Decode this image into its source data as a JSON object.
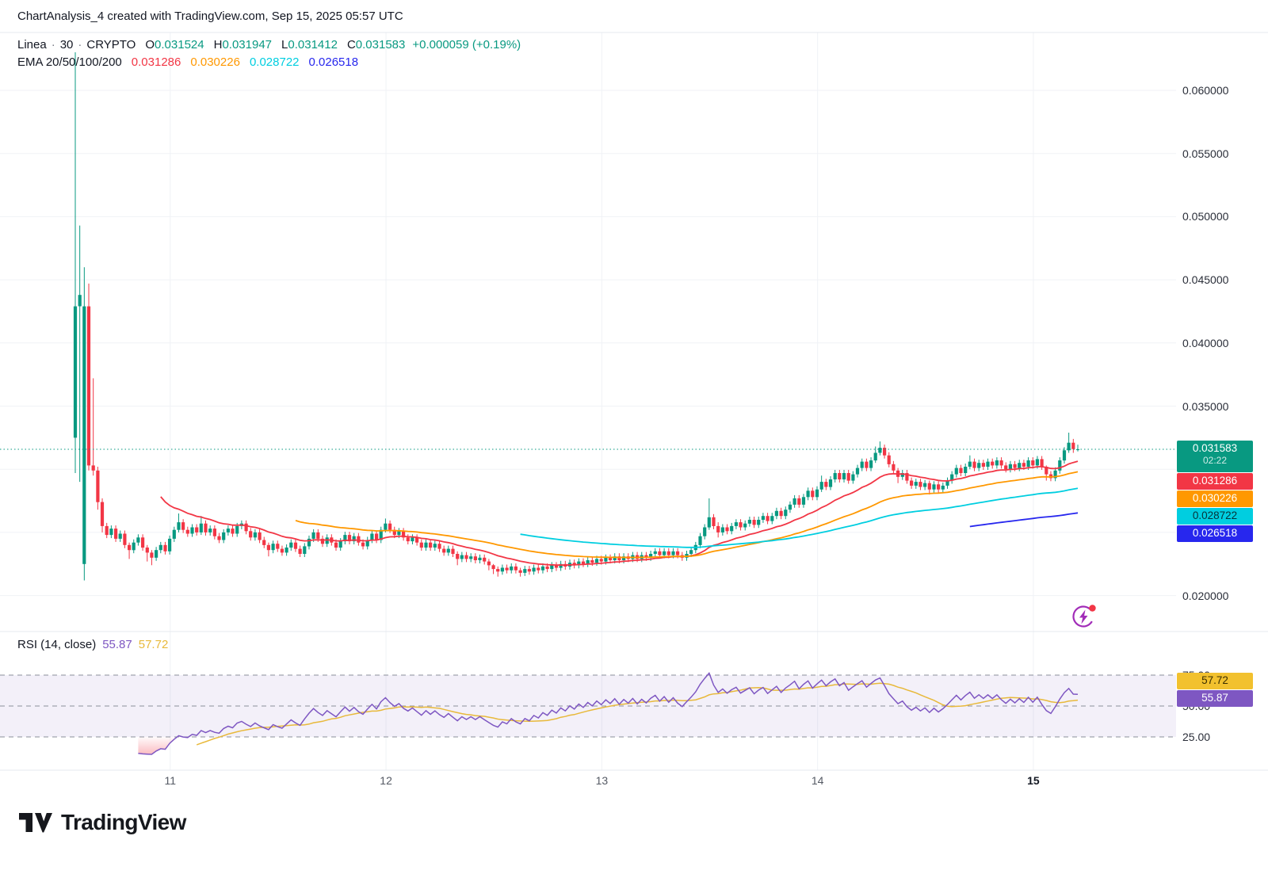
{
  "header": {
    "title": "ChartAnalysis_4 created with TradingView.com, Sep 15, 2025 05:57 UTC"
  },
  "legend": {
    "symbol": "Linea",
    "separator": "·",
    "interval": "30",
    "market": "CRYPTO",
    "ohlc": [
      {
        "label": "O",
        "value": "0.031524"
      },
      {
        "label": "H",
        "value": "0.031947"
      },
      {
        "label": "L",
        "value": "0.031412"
      },
      {
        "label": "C",
        "value": "0.031583"
      }
    ],
    "change": "+0.000059 (+0.19%)",
    "ema_label": "EMA 20/50/100/200",
    "ema_values": [
      "0.031286",
      "0.030226",
      "0.028722",
      "0.026518"
    ]
  },
  "price_axis": {
    "ticks": [
      {
        "text": "0.060000",
        "value": 0.06
      },
      {
        "text": "0.055000",
        "value": 0.055
      },
      {
        "text": "0.050000",
        "value": 0.05
      },
      {
        "text": "0.045000",
        "value": 0.045
      },
      {
        "text": "0.040000",
        "value": 0.04
      },
      {
        "text": "0.035000",
        "value": 0.035
      },
      {
        "text": "0.020000",
        "value": 0.02
      }
    ],
    "labels": [
      {
        "text": "0.031583",
        "sub": "02:22",
        "value": 0.031583,
        "bg": "#089981",
        "fg": "#ffffff"
      },
      {
        "text": "0.031286",
        "value": 0.031286,
        "bg": "#F23645",
        "fg": "#ffffff"
      },
      {
        "text": "0.030226",
        "value": 0.030226,
        "bg": "#FF9800",
        "fg": "#ffffff"
      },
      {
        "text": "0.028722",
        "value": 0.028722,
        "bg": "#00CEE0",
        "fg": "#073238"
      },
      {
        "text": "0.026518",
        "value": 0.026518,
        "bg": "#2727EE",
        "fg": "#ffffff"
      }
    ]
  },
  "rsi_pane": {
    "legend": "RSI (14, close)",
    "value": "55.87",
    "ma_value": "57.72",
    "ticks": [
      {
        "text": "75.00",
        "value": 75
      },
      {
        "text": "50.00",
        "value": 50
      },
      {
        "text": "25.00",
        "value": 25
      }
    ],
    "boxes": [
      {
        "text": "55.87",
        "value": 55.87,
        "bg": "#7E57C2",
        "fg": "#ffffff"
      },
      {
        "text": "57.72",
        "value": 57.72,
        "bg": "#F2C12E",
        "fg": "#3a2e00"
      }
    ]
  },
  "x_axis": {
    "labels": [
      {
        "text": "11",
        "day": 11
      },
      {
        "text": "12",
        "day": 12
      },
      {
        "text": "13",
        "day": 13
      },
      {
        "text": "14",
        "day": 14
      },
      {
        "text": "15",
        "day": 15,
        "emphasis": true
      }
    ]
  },
  "footer": {
    "brand": "TradingView"
  },
  "chart_data": {
    "type": "candlestick",
    "title": "Linea 30-minute chart, CRYPTO",
    "interval_minutes": 30,
    "bars_per_day": 48,
    "x_start_day": 10.56,
    "day_ticks": [
      11,
      12,
      13,
      14,
      15
    ],
    "price_grid": [
      0.06,
      0.055,
      0.05,
      0.045,
      0.04,
      0.035,
      0.03,
      0.025,
      0.02
    ],
    "visible_price_range": [
      0.0186,
      0.0625
    ],
    "current_price": 0.031583,
    "up_color": "#089981",
    "down_color": "#F23645",
    "default_wick": 0.00025,
    "candles": [
      [
        0.0325,
        0.0429,
        0.066,
        0.0297
      ],
      [
        0.0429,
        0.0438,
        0.0493,
        0.029
      ],
      [
        0.0225,
        0.0429,
        0.046,
        0.0212
      ],
      [
        0.0429,
        0.0303,
        0.0447,
        0.0299
      ],
      [
        0.0303,
        0.0299,
        0.0372,
        0.0295
      ],
      [
        0.0299,
        0.0274,
        0.0302,
        0.0268
      ],
      [
        0.0274,
        0.0255,
        0.0277,
        0.025
      ],
      [
        0.0255,
        0.0248
      ],
      [
        0.0248,
        0.0253
      ],
      [
        0.0253,
        0.0245
      ],
      [
        0.0245,
        0.0249
      ],
      [
        0.0249,
        0.024
      ],
      [
        0.024,
        0.0236,
        0.0242,
        0.0229
      ],
      [
        0.0236,
        0.0242
      ],
      [
        0.0242,
        0.0246
      ],
      [
        0.0246,
        0.0238
      ],
      [
        0.0238,
        0.0234,
        0.024,
        0.0227
      ],
      [
        0.0234,
        0.023,
        0.0236,
        0.0224
      ],
      [
        0.023,
        0.0236
      ],
      [
        0.0236,
        0.024
      ],
      [
        0.024,
        0.0235
      ],
      [
        0.0235,
        0.0245
      ],
      [
        0.0245,
        0.0252
      ],
      [
        0.0252,
        0.0258,
        0.0265,
        0.025
      ],
      [
        0.0258,
        0.0252
      ],
      [
        0.0252,
        0.0249
      ],
      [
        0.0249,
        0.0254
      ],
      [
        0.0254,
        0.025
      ],
      [
        0.025,
        0.0257,
        0.0263,
        0.0248
      ],
      [
        0.0257,
        0.025
      ],
      [
        0.025,
        0.0253
      ],
      [
        0.0253,
        0.0247
      ],
      [
        0.0247,
        0.0244
      ],
      [
        0.0244,
        0.025
      ],
      [
        0.025,
        0.0253
      ],
      [
        0.0253,
        0.0249
      ],
      [
        0.0249,
        0.0255
      ],
      [
        0.0255,
        0.0257
      ],
      [
        0.0257,
        0.0251
      ],
      [
        0.0251,
        0.0246
      ],
      [
        0.0246,
        0.025
      ],
      [
        0.025,
        0.0244
      ],
      [
        0.0244,
        0.024
      ],
      [
        0.024,
        0.0236,
        0.0242,
        0.0231
      ],
      [
        0.0236,
        0.0241
      ],
      [
        0.0241,
        0.0237
      ],
      [
        0.0237,
        0.0234
      ],
      [
        0.0234,
        0.0238
      ],
      [
        0.0238,
        0.0242
      ],
      [
        0.0242,
        0.0237
      ],
      [
        0.0237,
        0.0233
      ],
      [
        0.0233,
        0.0239
      ],
      [
        0.0239,
        0.0245
      ],
      [
        0.0245,
        0.025
      ],
      [
        0.025,
        0.0245
      ],
      [
        0.0245,
        0.0241
      ],
      [
        0.0241,
        0.0246
      ],
      [
        0.0246,
        0.0242
      ],
      [
        0.0242,
        0.0238
      ],
      [
        0.0238,
        0.0243
      ],
      [
        0.0243,
        0.0248
      ],
      [
        0.0248,
        0.0243
      ],
      [
        0.0243,
        0.0247
      ],
      [
        0.0247,
        0.0242
      ],
      [
        0.0242,
        0.0239
      ],
      [
        0.0239,
        0.0244
      ],
      [
        0.0244,
        0.0249
      ],
      [
        0.0249,
        0.0244
      ],
      [
        0.0244,
        0.0252
      ],
      [
        0.0252,
        0.0257,
        0.0261,
        0.025
      ],
      [
        0.0257,
        0.0252
      ],
      [
        0.0252,
        0.0248
      ],
      [
        0.0248,
        0.0251
      ],
      [
        0.0251,
        0.0246
      ],
      [
        0.0246,
        0.0243
      ],
      [
        0.0243,
        0.0246
      ],
      [
        0.0246,
        0.0242
      ],
      [
        0.0242,
        0.0238
      ],
      [
        0.0238,
        0.0242
      ],
      [
        0.0242,
        0.0238
      ],
      [
        0.0238,
        0.0241
      ],
      [
        0.0241,
        0.0237
      ],
      [
        0.0237,
        0.0234
      ],
      [
        0.0234,
        0.0237
      ],
      [
        0.0237,
        0.0233
      ],
      [
        0.0233,
        0.0229,
        0.0235,
        0.0224
      ],
      [
        0.0229,
        0.0232
      ],
      [
        0.0232,
        0.0229
      ],
      [
        0.0229,
        0.0231
      ],
      [
        0.0231,
        0.0228
      ],
      [
        0.0228,
        0.023
      ],
      [
        0.023,
        0.0227
      ],
      [
        0.0227,
        0.0224,
        0.0229,
        0.022
      ],
      [
        0.0224,
        0.0221,
        0.0225,
        0.0217
      ],
      [
        0.0221,
        0.0219,
        0.0223,
        0.0215
      ],
      [
        0.0219,
        0.0222
      ],
      [
        0.0222,
        0.022
      ],
      [
        0.022,
        0.0223
      ],
      [
        0.0223,
        0.022
      ],
      [
        0.022,
        0.0218,
        0.0222,
        0.0215
      ],
      [
        0.0218,
        0.0221
      ],
      [
        0.0221,
        0.0219
      ],
      [
        0.0219,
        0.0222
      ],
      [
        0.0222,
        0.022
      ],
      [
        0.022,
        0.0223
      ],
      [
        0.0223,
        0.0221
      ],
      [
        0.0221,
        0.0224
      ],
      [
        0.0224,
        0.0222
      ],
      [
        0.0222,
        0.0225
      ],
      [
        0.0225,
        0.0223
      ],
      [
        0.0223,
        0.0226
      ],
      [
        0.0226,
        0.0224
      ],
      [
        0.0224,
        0.0227
      ],
      [
        0.0227,
        0.0225
      ],
      [
        0.0225,
        0.0228
      ],
      [
        0.0228,
        0.0226
      ],
      [
        0.0226,
        0.0229
      ],
      [
        0.0229,
        0.0227
      ],
      [
        0.0227,
        0.023
      ],
      [
        0.023,
        0.0228
      ],
      [
        0.0228,
        0.0231
      ],
      [
        0.0231,
        0.0228
      ],
      [
        0.0228,
        0.0231
      ],
      [
        0.0231,
        0.0229
      ],
      [
        0.0229,
        0.0232
      ],
      [
        0.0232,
        0.0229
      ],
      [
        0.0229,
        0.0232
      ],
      [
        0.0232,
        0.023
      ],
      [
        0.023,
        0.0233
      ],
      [
        0.0233,
        0.0235
      ],
      [
        0.0235,
        0.0232
      ],
      [
        0.0232,
        0.0235
      ],
      [
        0.0235,
        0.0232
      ],
      [
        0.0232,
        0.0235
      ],
      [
        0.0235,
        0.0232
      ],
      [
        0.0232,
        0.023
      ],
      [
        0.023,
        0.0233
      ],
      [
        0.0233,
        0.0236
      ],
      [
        0.0236,
        0.024
      ],
      [
        0.024,
        0.0247
      ],
      [
        0.0247,
        0.0254
      ],
      [
        0.0254,
        0.0262,
        0.0277,
        0.0252
      ],
      [
        0.0262,
        0.0255
      ],
      [
        0.0255,
        0.025,
        0.0258,
        0.0246
      ],
      [
        0.025,
        0.0254
      ],
      [
        0.0254,
        0.0251
      ],
      [
        0.0251,
        0.0255
      ],
      [
        0.0255,
        0.0258
      ],
      [
        0.0258,
        0.0254
      ],
      [
        0.0254,
        0.0257
      ],
      [
        0.0257,
        0.026
      ],
      [
        0.026,
        0.0256
      ],
      [
        0.0256,
        0.026
      ],
      [
        0.026,
        0.0263
      ],
      [
        0.0263,
        0.0259
      ],
      [
        0.0259,
        0.0263
      ],
      [
        0.0263,
        0.0267
      ],
      [
        0.0267,
        0.0263
      ],
      [
        0.0263,
        0.0268
      ],
      [
        0.0268,
        0.0272
      ],
      [
        0.0272,
        0.0277
      ],
      [
        0.0277,
        0.0272
      ],
      [
        0.0272,
        0.0278
      ],
      [
        0.0278,
        0.0283
      ],
      [
        0.0283,
        0.0278
      ],
      [
        0.0278,
        0.0284
      ],
      [
        0.0284,
        0.029,
        0.0295,
        0.0282
      ],
      [
        0.029,
        0.0286
      ],
      [
        0.0286,
        0.0292
      ],
      [
        0.0292,
        0.0297
      ],
      [
        0.0297,
        0.0292
      ],
      [
        0.0292,
        0.0297
      ],
      [
        0.0297,
        0.0291
      ],
      [
        0.0291,
        0.0296
      ],
      [
        0.0296,
        0.0301
      ],
      [
        0.0301,
        0.0306
      ],
      [
        0.0306,
        0.0301
      ],
      [
        0.0301,
        0.0307
      ],
      [
        0.0307,
        0.0313,
        0.0318,
        0.0305
      ],
      [
        0.0313,
        0.0317,
        0.0322,
        0.0311
      ],
      [
        0.0317,
        0.0311
      ],
      [
        0.0311,
        0.0304
      ],
      [
        0.0304,
        0.0299
      ],
      [
        0.0299,
        0.0294,
        0.0301,
        0.0289
      ],
      [
        0.0294,
        0.0297
      ],
      [
        0.0297,
        0.0291
      ],
      [
        0.0291,
        0.0287
      ],
      [
        0.0287,
        0.029
      ],
      [
        0.029,
        0.0286
      ],
      [
        0.0286,
        0.0289
      ],
      [
        0.0289,
        0.0284,
        0.0291,
        0.028
      ],
      [
        0.0284,
        0.0288
      ],
      [
        0.0288,
        0.0284
      ],
      [
        0.0284,
        0.0287
      ],
      [
        0.0287,
        0.0291
      ],
      [
        0.0291,
        0.0296
      ],
      [
        0.0296,
        0.0301
      ],
      [
        0.0301,
        0.0297
      ],
      [
        0.0297,
        0.0302
      ],
      [
        0.0302,
        0.0306,
        0.0311,
        0.03
      ],
      [
        0.0306,
        0.0301
      ],
      [
        0.0301,
        0.0305
      ],
      [
        0.0305,
        0.0302
      ],
      [
        0.0302,
        0.0306
      ],
      [
        0.0306,
        0.0303
      ],
      [
        0.0303,
        0.0307
      ],
      [
        0.0307,
        0.0303
      ],
      [
        0.0303,
        0.03
      ],
      [
        0.03,
        0.0304
      ],
      [
        0.0304,
        0.0301
      ],
      [
        0.0301,
        0.0305
      ],
      [
        0.0305,
        0.0302
      ],
      [
        0.0302,
        0.0307
      ],
      [
        0.0307,
        0.0303
      ],
      [
        0.0303,
        0.0308
      ],
      [
        0.0308,
        0.0302
      ],
      [
        0.0302,
        0.0296,
        0.0303,
        0.0291
      ],
      [
        0.0296,
        0.0293
      ],
      [
        0.0293,
        0.0299
      ],
      [
        0.0299,
        0.0307
      ],
      [
        0.0307,
        0.0315
      ],
      [
        0.0315,
        0.0321,
        0.0329,
        0.0313
      ],
      [
        0.0321,
        0.0316,
        0.0324,
        0.0313
      ],
      [
        0.031524,
        0.031583,
        0.031947,
        0.031412
      ]
    ],
    "overlays": [
      {
        "name": "EMA 20",
        "period": 20,
        "color": "#F23645",
        "last": 0.031286
      },
      {
        "name": "EMA 50",
        "period": 50,
        "color": "#FF9800",
        "last": 0.030226
      },
      {
        "name": "EMA 100",
        "period": 100,
        "color": "#00CEE0",
        "last": 0.028722
      },
      {
        "name": "EMA 200",
        "period": 200,
        "color": "#2727EE",
        "last": 0.026518
      }
    ],
    "rsi": {
      "period": 14,
      "ma_period": 14,
      "color": "#7E57C2",
      "ma_color": "#E8B93B",
      "levels": [
        75,
        50,
        25
      ],
      "band": [
        25,
        75
      ],
      "band_fill": "rgba(126,87,194,0.09)",
      "oversold_color": "#F23645",
      "overbought_color": "#089981",
      "last": 55.87,
      "ma_last": 57.72
    }
  }
}
